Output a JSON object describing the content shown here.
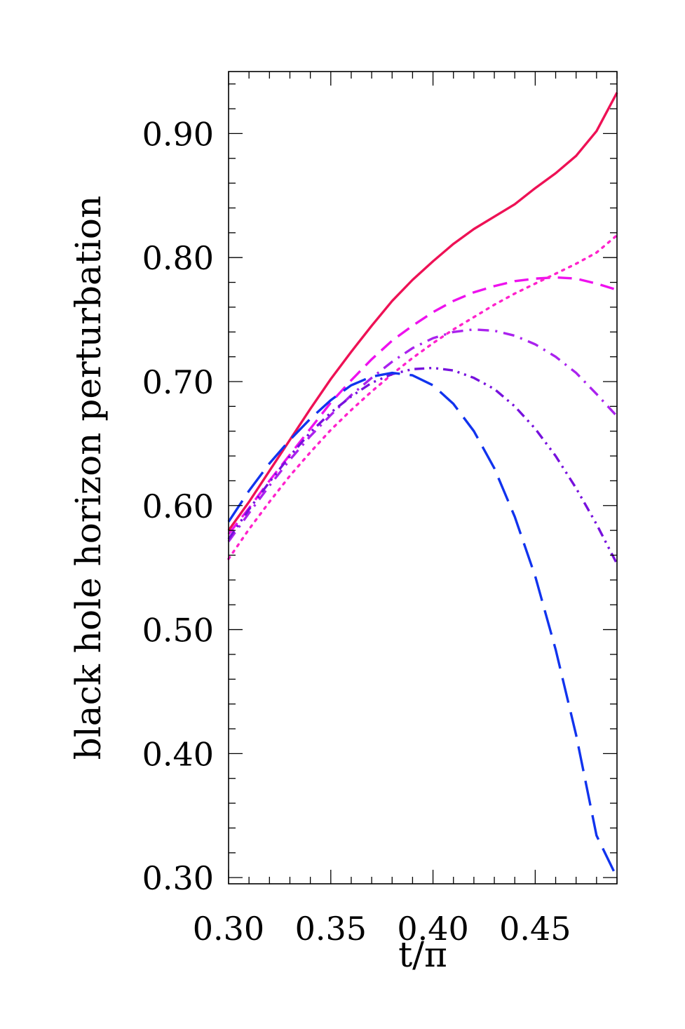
{
  "chart_data": {
    "type": "line",
    "title": "",
    "xlabel": "t/π",
    "ylabel": "black hole horizon perturbation",
    "xlim": [
      0.3,
      0.49
    ],
    "ylim": [
      0.295,
      0.95
    ],
    "xticks": [
      0.3,
      0.35,
      0.4,
      0.45
    ],
    "xtick_labels": [
      "0.30",
      "0.35",
      "0.40",
      "0.45"
    ],
    "yticks": [
      0.3,
      0.4,
      0.5,
      0.6,
      0.7,
      0.8,
      0.9
    ],
    "ytick_labels": [
      "0.30",
      "0.40",
      "0.50",
      "0.60",
      "0.70",
      "0.80",
      "0.90"
    ],
    "grid": false,
    "legend": "none",
    "series": [
      {
        "color": "#ee1155",
        "dash": "solid",
        "x": [
          0.3,
          0.31,
          0.32,
          0.33,
          0.34,
          0.35,
          0.36,
          0.37,
          0.38,
          0.39,
          0.4,
          0.41,
          0.42,
          0.43,
          0.44,
          0.45,
          0.46,
          0.47,
          0.48,
          0.49
        ],
        "y": [
          0.58,
          0.603,
          0.628,
          0.653,
          0.678,
          0.702,
          0.724,
          0.745,
          0.765,
          0.782,
          0.797,
          0.811,
          0.823,
          0.833,
          0.843,
          0.856,
          0.868,
          0.882,
          0.902,
          0.933
        ]
      },
      {
        "color": "#ee11ee",
        "dash": "dashed",
        "x": [
          0.3,
          0.31,
          0.32,
          0.33,
          0.34,
          0.35,
          0.36,
          0.37,
          0.38,
          0.39,
          0.4,
          0.41,
          0.42,
          0.43,
          0.44,
          0.45,
          0.46,
          0.47,
          0.48,
          0.49
        ],
        "y": [
          0.577,
          0.598,
          0.62,
          0.641,
          0.662,
          0.683,
          0.701,
          0.718,
          0.733,
          0.745,
          0.756,
          0.765,
          0.772,
          0.777,
          0.781,
          0.783,
          0.784,
          0.783,
          0.779,
          0.774
        ]
      },
      {
        "color": "#ff22cc",
        "dash": "dotted",
        "x": [
          0.3,
          0.31,
          0.32,
          0.33,
          0.34,
          0.35,
          0.36,
          0.37,
          0.38,
          0.39,
          0.4,
          0.41,
          0.42,
          0.43,
          0.44,
          0.45,
          0.46,
          0.47,
          0.48,
          0.49
        ],
        "y": [
          0.557,
          0.581,
          0.603,
          0.624,
          0.643,
          0.661,
          0.677,
          0.692,
          0.706,
          0.719,
          0.731,
          0.742,
          0.752,
          0.762,
          0.771,
          0.779,
          0.787,
          0.795,
          0.804,
          0.818
        ]
      },
      {
        "color": "#aa22ee",
        "dash": "dash-dot",
        "x": [
          0.3,
          0.31,
          0.32,
          0.33,
          0.34,
          0.35,
          0.36,
          0.37,
          0.38,
          0.39,
          0.4,
          0.41,
          0.42,
          0.43,
          0.44,
          0.45,
          0.46,
          0.47,
          0.48,
          0.49
        ],
        "y": [
          0.571,
          0.594,
          0.616,
          0.637,
          0.656,
          0.673,
          0.689,
          0.703,
          0.716,
          0.727,
          0.735,
          0.74,
          0.742,
          0.741,
          0.737,
          0.73,
          0.72,
          0.707,
          0.69,
          0.672
        ]
      },
      {
        "color": "#7711dd",
        "dash": "dash-dot-dot",
        "x": [
          0.3,
          0.31,
          0.32,
          0.33,
          0.34,
          0.35,
          0.36,
          0.37,
          0.38,
          0.39,
          0.4,
          0.41,
          0.42,
          0.43,
          0.44,
          0.45,
          0.46,
          0.47,
          0.48,
          0.49
        ],
        "y": [
          0.573,
          0.597,
          0.619,
          0.64,
          0.659,
          0.675,
          0.688,
          0.699,
          0.706,
          0.71,
          0.711,
          0.709,
          0.703,
          0.694,
          0.68,
          0.662,
          0.64,
          0.614,
          0.585,
          0.553
        ]
      },
      {
        "color": "#1133ee",
        "dash": "long-dashed",
        "x": [
          0.3,
          0.31,
          0.32,
          0.33,
          0.34,
          0.35,
          0.36,
          0.37,
          0.38,
          0.39,
          0.4,
          0.41,
          0.42,
          0.43,
          0.44,
          0.45,
          0.46,
          0.47,
          0.48,
          0.49
        ],
        "y": [
          0.587,
          0.612,
          0.634,
          0.653,
          0.67,
          0.685,
          0.697,
          0.704,
          0.707,
          0.705,
          0.697,
          0.682,
          0.66,
          0.63,
          0.591,
          0.543,
          0.484,
          0.415,
          0.334,
          0.3
        ]
      }
    ]
  }
}
